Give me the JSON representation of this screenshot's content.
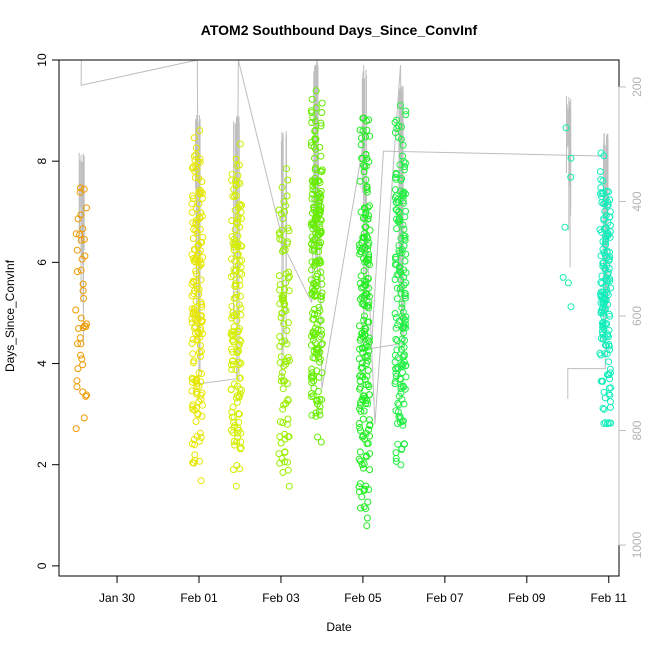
{
  "chart_data": {
    "type": "scatter",
    "title": "ATOM2 Southbound Days_Since_ConvInf",
    "xlabel": "Date",
    "ylabel": "Days_Since_ConvInf",
    "x_axis_type": "date",
    "xlim": [
      "2024-01-28T14:00",
      "2024-02-11T06:00"
    ],
    "ylim": [
      -0.2,
      10
    ],
    "x_ticks": [
      {
        "date": "2024-01-30",
        "label": "Jan 30"
      },
      {
        "date": "2024-02-01",
        "label": "Feb 01"
      },
      {
        "date": "2024-02-03",
        "label": "Feb 03"
      },
      {
        "date": "2024-02-05",
        "label": "Feb 05"
      },
      {
        "date": "2024-02-07",
        "label": "Feb 07"
      },
      {
        "date": "2024-02-09",
        "label": "Feb 09"
      },
      {
        "date": "2024-02-11",
        "label": "Feb 11"
      }
    ],
    "y_ticks": [
      0,
      2,
      4,
      6,
      8,
      10
    ],
    "secondary_axis": {
      "side": "right",
      "inverted": true,
      "ylim": [
        1054,
        153
      ],
      "ticks": [
        200,
        400,
        600,
        800,
        1000
      ],
      "color": "#bebebe"
    },
    "grid": false,
    "legend": "none",
    "marker": "open-circle",
    "clusters": [
      {
        "date": "2024-01-29T03:00",
        "color": "#ee9a00",
        "y_min": 2.3,
        "y_max": 7.9,
        "n": 40
      },
      {
        "date": "2024-01-31T23:00",
        "color": "#e6e600",
        "y_min": 1.6,
        "y_max": 8.7,
        "n": 170
      },
      {
        "date": "2024-02-01T22:00",
        "color": "#d4ee00",
        "y_min": 1.4,
        "y_max": 8.7,
        "n": 150
      },
      {
        "date": "2024-02-03T02:00",
        "color": "#9aee00",
        "y_min": 0.95,
        "y_max": 8.3,
        "n": 95
      },
      {
        "date": "2024-02-03T21:00",
        "color": "#66ee00",
        "y_min": 2.2,
        "y_max": 9.7,
        "n": 210
      },
      {
        "date": "2024-02-05T01:00",
        "color": "#22ee22",
        "y_min": 0.25,
        "y_max": 9.6,
        "n": 200
      },
      {
        "date": "2024-02-05T22:00",
        "color": "#22ee44",
        "y_min": 1.6,
        "y_max": 9.3,
        "n": 180
      },
      {
        "date": "2024-02-10T00:00",
        "color": "#11eeaa",
        "y_min": 4.4,
        "y_max": 9.0,
        "n": 7
      },
      {
        "date": "2024-02-10T22:00",
        "color": "#11eebb",
        "y_min": 2.4,
        "y_max": 8.3,
        "n": 160
      }
    ],
    "track": {
      "color": "#bebebe",
      "points": [
        [
          "2024-01-29T03:00",
          10.0
        ],
        [
          "2024-01-29T03:00",
          9.5
        ],
        [
          "2024-01-31T23:00",
          10.0
        ],
        [
          "2024-02-01T00:00",
          3.6
        ],
        [
          "2024-02-01T22:00",
          3.7
        ],
        [
          "2024-02-01T23:00",
          10.0
        ],
        [
          "2024-02-03T02:00",
          6.3
        ],
        [
          "2024-02-03T18:00",
          5.2
        ],
        [
          "2024-02-03T21:00",
          10.0
        ],
        [
          "2024-02-04T00:00",
          3.5
        ],
        [
          "2024-02-05T00:00",
          8.3
        ],
        [
          "2024-02-05T07:00",
          2.8
        ],
        [
          "2024-02-05T22:00",
          9.9
        ],
        [
          "2024-02-06T00:00",
          4.4
        ],
        [
          "2024-02-05T05:00",
          4.3
        ],
        [
          "2024-02-05T12:00",
          8.2
        ],
        [
          "2024-02-10T22:00",
          8.1
        ],
        [
          "2024-02-10T22:00",
          3.9
        ],
        [
          "2024-02-10T00:00",
          3.9
        ],
        [
          "2024-02-10T00:00",
          3.3
        ]
      ]
    }
  }
}
